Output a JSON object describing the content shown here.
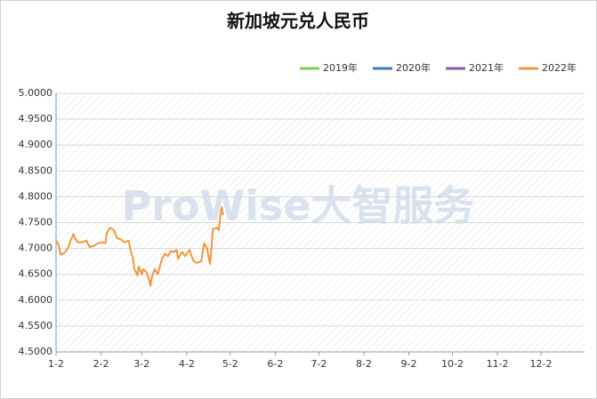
{
  "chart_data": {
    "type": "line",
    "title": "新加坡元兑人民币",
    "watermark": "ProWise大智服务",
    "xlim": [
      0,
      364
    ],
    "xticks": [
      {
        "value": 0,
        "label": "1-2"
      },
      {
        "value": 31,
        "label": "2-2"
      },
      {
        "value": 59,
        "label": "3-2"
      },
      {
        "value": 90,
        "label": "4-2"
      },
      {
        "value": 120,
        "label": "5-2"
      },
      {
        "value": 151,
        "label": "6-2"
      },
      {
        "value": 181,
        "label": "7-2"
      },
      {
        "value": 212,
        "label": "8-2"
      },
      {
        "value": 243,
        "label": "9-2"
      },
      {
        "value": 273,
        "label": "10-2"
      },
      {
        "value": 304,
        "label": "11-2"
      },
      {
        "value": 334,
        "label": "12-2"
      }
    ],
    "ylim": [
      4.5,
      5.0
    ],
    "yticks": [
      {
        "value": 4.5,
        "label": "4.5000"
      },
      {
        "value": 4.55,
        "label": "4.5500"
      },
      {
        "value": 4.6,
        "label": "4.6000"
      },
      {
        "value": 4.65,
        "label": "4.6500"
      },
      {
        "value": 4.7,
        "label": "4.7000"
      },
      {
        "value": 4.75,
        "label": "4.7500"
      },
      {
        "value": 4.8,
        "label": "4.8000"
      },
      {
        "value": 4.85,
        "label": "4.8500"
      },
      {
        "value": 4.9,
        "label": "4.9000"
      },
      {
        "value": 4.95,
        "label": "4.9500"
      },
      {
        "value": 5.0,
        "label": "5.0000"
      }
    ],
    "grid": true,
    "legend": "top-right",
    "series": [
      {
        "name": "2019年",
        "color": "#7ccd4e"
      },
      {
        "name": "2020年",
        "color": "#3d7ebf"
      },
      {
        "name": "2021年",
        "color": "#7e5ea8"
      },
      {
        "name": "2022年",
        "color": "#f5953a",
        "x": [
          0,
          2,
          3,
          6,
          8,
          10,
          12,
          13,
          15,
          18,
          21,
          23,
          26,
          29,
          32,
          34,
          35,
          37,
          40,
          42,
          45,
          47,
          50,
          51,
          53,
          54,
          56,
          57,
          59,
          60,
          62,
          64,
          65,
          66,
          68,
          70,
          72,
          73,
          75,
          77,
          79,
          81,
          83,
          84,
          86,
          87,
          89,
          92,
          94,
          95,
          97,
          100,
          102,
          104,
          106,
          107,
          108,
          111,
          112,
          113,
          114,
          115
        ],
        "values": [
          4.716,
          4.705,
          4.688,
          4.692,
          4.7,
          4.715,
          4.728,
          4.72,
          4.712,
          4.712,
          4.715,
          4.703,
          4.705,
          4.71,
          4.712,
          4.71,
          4.73,
          4.74,
          4.735,
          4.72,
          4.717,
          4.712,
          4.715,
          4.7,
          4.68,
          4.66,
          4.648,
          4.665,
          4.65,
          4.66,
          4.655,
          4.64,
          4.628,
          4.645,
          4.66,
          4.65,
          4.67,
          4.68,
          4.69,
          4.685,
          4.695,
          4.693,
          4.697,
          4.68,
          4.69,
          4.693,
          4.685,
          4.697,
          4.68,
          4.675,
          4.672,
          4.675,
          4.71,
          4.7,
          4.67,
          4.7,
          4.738,
          4.74,
          4.735,
          4.76,
          4.78,
          4.765
        ]
      }
    ]
  }
}
